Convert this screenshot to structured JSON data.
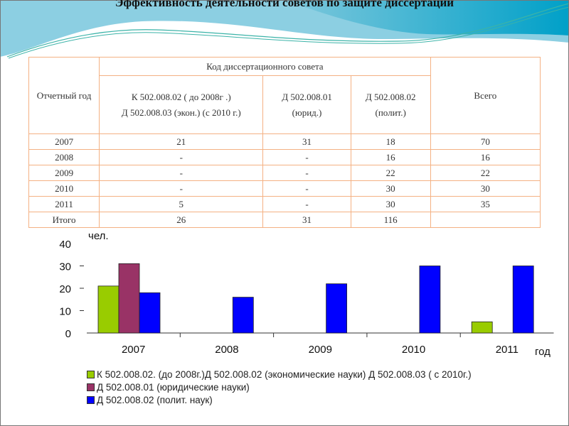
{
  "title": "Эффективность деятельности советов по защите диссертации",
  "table": {
    "col_year": "Отчетный год",
    "col_group": "Код  диссертационного совета",
    "col_total": "Всего",
    "sub_cols": [
      [
        "К 502.008.02 ( до 2008г .)",
        "Д 502.008.03  (экон.) (с 2010 г.)"
      ],
      [
        "Д 502.008.01",
        "(юрид.)"
      ],
      [
        "Д 502.008.02",
        "(полит.)"
      ]
    ],
    "rows": [
      [
        "2007",
        "21",
        "31",
        "18",
        "70"
      ],
      [
        "2008",
        "-",
        "-",
        "16",
        "16"
      ],
      [
        "2009",
        "-",
        "-",
        "22",
        "22"
      ],
      [
        "2010",
        "-",
        "-",
        "30",
        "30"
      ],
      [
        "2011",
        "5",
        "-",
        "30",
        "35"
      ],
      [
        "Итого",
        "26",
        "31",
        "116",
        ""
      ]
    ]
  },
  "chart_data": {
    "type": "bar",
    "categories": [
      "2007",
      "2008",
      "2009",
      "2010",
      "2011"
    ],
    "series": [
      {
        "name": "К 502.008.02. (до 2008г.)Д 502.008.02 (экономические науки) Д 502.008.03 ( с 2010г.)",
        "values": [
          21,
          0,
          0,
          0,
          5
        ],
        "color": "#99cc00"
      },
      {
        "name": "Д 502.008.01 (юридические науки)",
        "values": [
          31,
          0,
          0,
          0,
          0
        ],
        "color": "#993366"
      },
      {
        "name": "Д 502.008.02 (полит. наук)",
        "values": [
          18,
          16,
          22,
          30,
          30
        ],
        "color": "#0000ff"
      }
    ],
    "ylabel": "чел.",
    "xlabel": "год",
    "ylim": [
      0,
      40
    ],
    "yticks": [
      "0",
      "10",
      "20",
      "30",
      "40"
    ],
    "legend": "bottom",
    "grid": false
  }
}
